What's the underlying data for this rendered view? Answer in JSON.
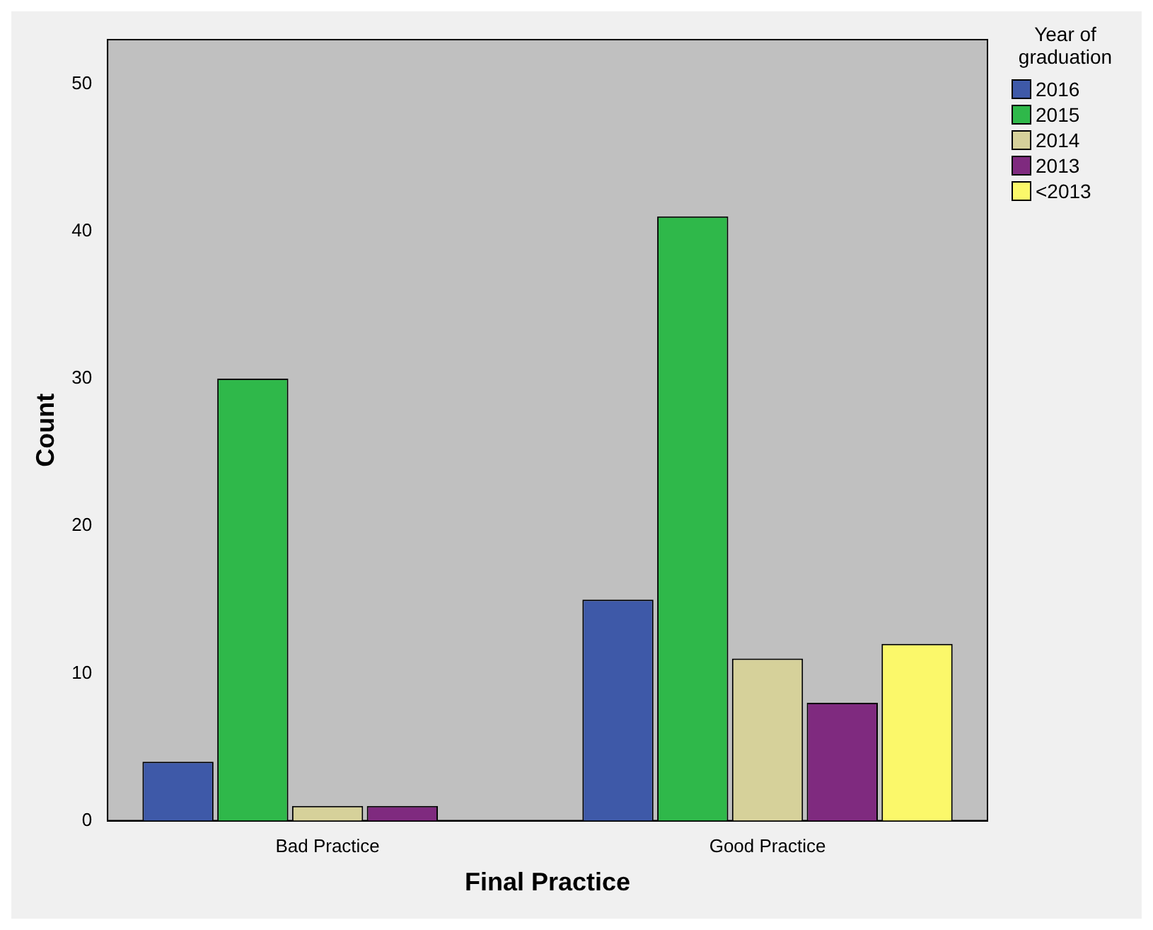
{
  "chart_data": {
    "type": "bar",
    "xlabel": "Final Practice",
    "ylabel": "Count",
    "legend_title": "Year of graduation",
    "categories": [
      "Bad Practice",
      "Good Practice"
    ],
    "series": [
      {
        "name": "2016",
        "color": "#3e59a8",
        "values": [
          4,
          15
        ]
      },
      {
        "name": "2015",
        "color": "#2fb84a",
        "values": [
          30,
          41
        ]
      },
      {
        "name": "2014",
        "color": "#d6d19a",
        "values": [
          1,
          11
        ]
      },
      {
        "name": "2013",
        "color": "#7f2a7f",
        "values": [
          1,
          8
        ]
      },
      {
        "name": "<2013",
        "color": "#fbf86a",
        "values": [
          null,
          12
        ]
      }
    ],
    "ylim": [
      0,
      53
    ],
    "yticks": [
      0,
      10,
      20,
      30,
      40,
      50
    ],
    "grid": false,
    "legend": "top right"
  }
}
